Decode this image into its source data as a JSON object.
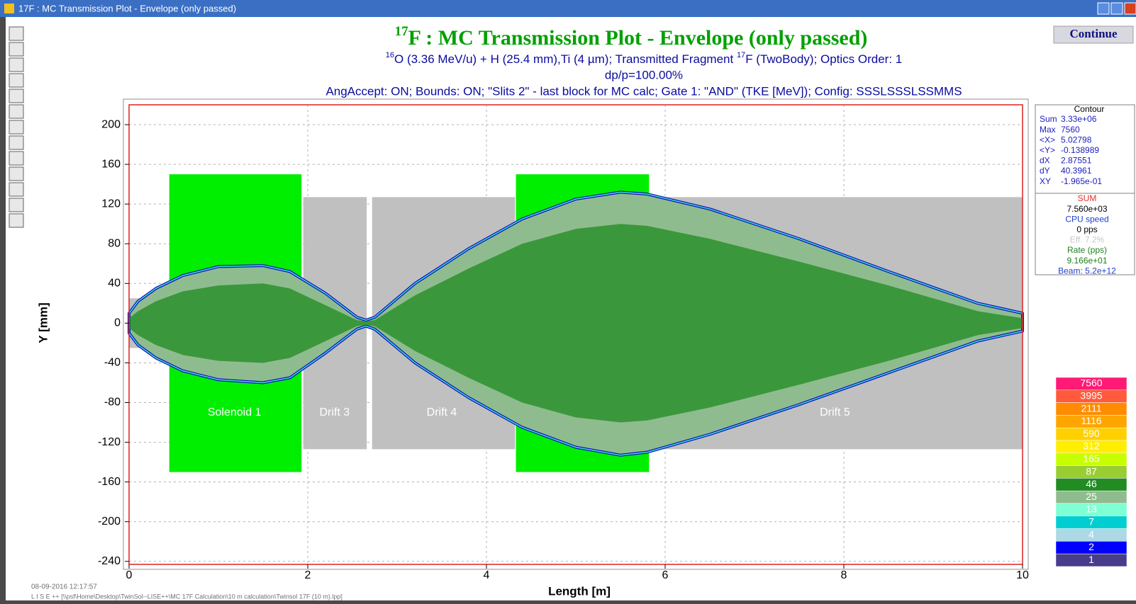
{
  "window": {
    "title": "17F : MC Transmission Plot - Envelope (only passed)"
  },
  "button": "Continue",
  "chart_data": {
    "type": "envelope",
    "title_sup": "17",
    "title": "F : MC Transmission Plot - Envelope (only passed)",
    "subtitle": [
      {
        "text": "16",
        "sup": true
      },
      {
        "text": "O (3.36 MeV/u) + H (25.4 mm),Ti (4 µm);  Transmitted Fragment "
      },
      {
        "text": "17",
        "sup": true
      },
      {
        "text": "F (TwoBody);  Optics Order: 1"
      }
    ],
    "subtitle2": "dp/p=100.00%",
    "subtitle3": "AngAccept: ON;   Bounds: ON;   \"Slits 2\" - last block for MC calc;  Gate 1: \"AND\" (TKE [MeV]);  Config: SSSLSSSLSSMMS",
    "x_label": "Length [m]",
    "y_label": "Y [mm]",
    "xlim": [
      0,
      10
    ],
    "ylim": [
      -243,
      220
    ],
    "xticks": [
      0,
      2,
      4,
      6,
      8,
      10
    ],
    "yticks": [
      -240,
      -200,
      -160,
      -120,
      -80,
      -40,
      0,
      40,
      80,
      120,
      160,
      200
    ],
    "grid": true,
    "elements": [
      {
        "x0": 0,
        "x1": 0.45,
        "half_height": 25,
        "color": "#c0c0c0"
      },
      {
        "label": "Solenoid 1",
        "label_x": 1.18,
        "x0": 0.45,
        "x1": 1.93,
        "half_height": 150,
        "color": "#00ee00"
      },
      {
        "label": "Drift 3",
        "label_x": 2.3,
        "x0": 1.95,
        "x1": 2.66,
        "half_height": 127,
        "color": "#c0c0c0"
      },
      {
        "label": "Drift 4",
        "label_x": 3.5,
        "x0": 2.72,
        "x1": 4.32,
        "half_height": 127,
        "color": "#c0c0c0"
      },
      {
        "label": "Drift 5",
        "label_x": 7.9,
        "x0": 5.82,
        "x1": 10,
        "half_height": 127,
        "color": "#c0c0c0"
      },
      {
        "x0": 4.33,
        "x1": 5.82,
        "half_height": 150,
        "color": "#00ee00"
      }
    ],
    "envelope": {
      "x": [
        0,
        0.1,
        0.3,
        0.6,
        1.0,
        1.5,
        1.8,
        2.2,
        2.55,
        2.65,
        2.75,
        3.2,
        3.8,
        4.4,
        5.0,
        5.5,
        5.8,
        6.5,
        7.5,
        8.5,
        9.5,
        10
      ],
      "upper": [
        10,
        22,
        35,
        48,
        57,
        58,
        52,
        30,
        6,
        3,
        6,
        40,
        75,
        105,
        125,
        132,
        130,
        115,
        85,
        52,
        20,
        10
      ],
      "lower": [
        -10,
        -22,
        -35,
        -48,
        -57,
        -60,
        -55,
        -30,
        -6,
        -3,
        -6,
        -40,
        -75,
        -105,
        -125,
        -133,
        -130,
        -112,
        -82,
        -50,
        -18,
        -8
      ],
      "core_upper": [
        5,
        12,
        22,
        32,
        38,
        40,
        35,
        18,
        3,
        2,
        3,
        28,
        55,
        80,
        95,
        100,
        98,
        85,
        62,
        38,
        12,
        5
      ],
      "core_lower": [
        -5,
        -12,
        -22,
        -32,
        -38,
        -40,
        -35,
        -18,
        -3,
        -2,
        -3,
        -28,
        -55,
        -80,
        -95,
        -100,
        -98,
        -85,
        -62,
        -38,
        -12,
        -5
      ],
      "outer_color": "#8fbc8f",
      "edge_color": "#1010c0",
      "rim_color": "#40e0d0",
      "core_color": "#1f8b1f"
    }
  },
  "stats": {
    "title": "Contour",
    "rows": [
      [
        "Sum",
        "3.33e+06"
      ],
      [
        "Max",
        "7560"
      ],
      [
        "<X>",
        "5.02798"
      ],
      [
        "<Y>",
        "-0.138989"
      ],
      [
        "dX",
        "2.87551"
      ],
      [
        "dY",
        "40.3961"
      ],
      [
        "XY",
        "-1.965e-01"
      ]
    ]
  },
  "rates": [
    {
      "text": "SUM",
      "color": "#e03030"
    },
    {
      "text": "7.560e+03",
      "color": "#000000"
    },
    {
      "text": "CPU speed",
      "color": "#2040d0"
    },
    {
      "text": "0 pps",
      "color": "#000000"
    },
    {
      "text": "Eff.   7.2%",
      "color": "#c8c8c8"
    },
    {
      "text": "Rate (pps)",
      "color": "#208020"
    },
    {
      "text": "9.166e+01",
      "color": "#208020"
    },
    {
      "text": "Beam: 5.2e+12",
      "color": "#2040d0"
    }
  ],
  "color_scale": [
    {
      "label": "7560",
      "color": "#ff1a75"
    },
    {
      "label": "3995",
      "color": "#ff5a3c"
    },
    {
      "label": "2111",
      "color": "#ff8c00"
    },
    {
      "label": "1116",
      "color": "#ffa500"
    },
    {
      "label": "590",
      "color": "#ffd000"
    },
    {
      "label": "312",
      "color": "#ffee00"
    },
    {
      "label": "165",
      "color": "#c8ff00"
    },
    {
      "label": "87",
      "color": "#9acd32"
    },
    {
      "label": "46",
      "color": "#228b22"
    },
    {
      "label": "25",
      "color": "#8fbc8f"
    },
    {
      "label": "13",
      "color": "#7fffd4"
    },
    {
      "label": "7",
      "color": "#00ced1"
    },
    {
      "label": "4",
      "color": "#add8e6"
    },
    {
      "label": "2",
      "color": "#0000ff"
    },
    {
      "label": "1",
      "color": "#483d8b"
    }
  ],
  "footer": {
    "timestamp": "08-09-2016  12:17:57",
    "path": "L I S E ++  [\\\\psf\\Home\\Desktop\\TwinSol--LISE++\\MC 17F Calculation\\10 m calculation\\Twinsol 17F (10 m).lpp]"
  }
}
